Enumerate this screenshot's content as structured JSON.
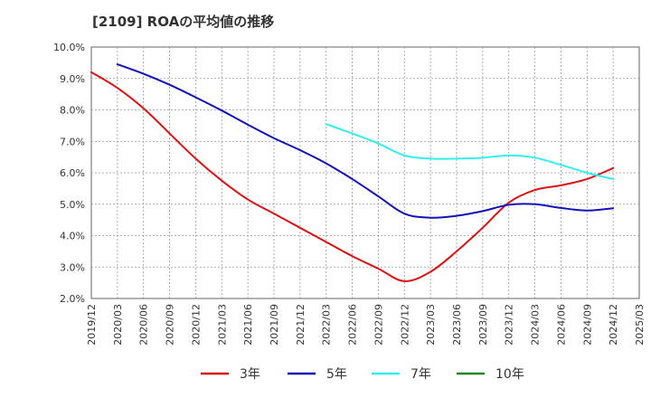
{
  "title": "[2109]  ROAの平均値の推移",
  "chart_data": {
    "type": "line",
    "title": "[2109]  ROAの平均値の推移",
    "x_ticks": [
      "2019/12",
      "2020/03",
      "2020/06",
      "2020/09",
      "2020/12",
      "2021/03",
      "2021/06",
      "2021/09",
      "2021/12",
      "2022/03",
      "2022/06",
      "2022/09",
      "2022/12",
      "2023/03",
      "2023/06",
      "2023/09",
      "2023/12",
      "2024/03",
      "2024/06",
      "2024/09",
      "2024/12",
      "2025/03"
    ],
    "y_ticks": [
      "2.0%",
      "3.0%",
      "4.0%",
      "5.0%",
      "6.0%",
      "7.0%",
      "8.0%",
      "9.0%",
      "10.0%"
    ],
    "ylim": [
      2.0,
      10.0
    ],
    "y_unit": "%",
    "grid": true,
    "legend_position": "bottom",
    "series": [
      {
        "name": "3年",
        "color": "#dd1111",
        "x": [
          "2019/12",
          "2020/03",
          "2020/06",
          "2020/09",
          "2020/12",
          "2021/03",
          "2021/06",
          "2021/09",
          "2021/12",
          "2022/03",
          "2022/06",
          "2022/09",
          "2022/12",
          "2023/03",
          "2023/06",
          "2023/09",
          "2023/12",
          "2024/03",
          "2024/06",
          "2024/09",
          "2024/12"
        ],
        "values": [
          9.2,
          8.7,
          8.05,
          7.25,
          6.45,
          5.75,
          5.15,
          4.7,
          4.25,
          3.8,
          3.35,
          2.95,
          2.55,
          2.85,
          3.5,
          4.25,
          5.05,
          5.45,
          5.6,
          5.8,
          6.15
        ]
      },
      {
        "name": "5年",
        "color": "#1111bb",
        "x": [
          "2020/03",
          "2020/06",
          "2020/09",
          "2020/12",
          "2021/03",
          "2021/06",
          "2021/09",
          "2021/12",
          "2022/03",
          "2022/06",
          "2022/09",
          "2022/12",
          "2023/03",
          "2023/06",
          "2023/09",
          "2023/12",
          "2024/03",
          "2024/06",
          "2024/09",
          "2024/12"
        ],
        "values": [
          9.45,
          9.15,
          8.8,
          8.4,
          7.98,
          7.53,
          7.1,
          6.72,
          6.3,
          5.8,
          5.25,
          4.7,
          4.57,
          4.63,
          4.78,
          4.98,
          5.0,
          4.88,
          4.8,
          4.87
        ]
      },
      {
        "name": "7年",
        "color": "#33eeee",
        "x": [
          "2022/03",
          "2022/06",
          "2022/09",
          "2022/12",
          "2023/03",
          "2023/06",
          "2023/09",
          "2023/12",
          "2024/03",
          "2024/06",
          "2024/09",
          "2024/12"
        ],
        "values": [
          7.55,
          7.25,
          6.93,
          6.55,
          6.45,
          6.45,
          6.48,
          6.55,
          6.48,
          6.25,
          6.0,
          5.8
        ]
      },
      {
        "name": "10年",
        "color": "#228822",
        "x": [],
        "values": []
      }
    ]
  }
}
